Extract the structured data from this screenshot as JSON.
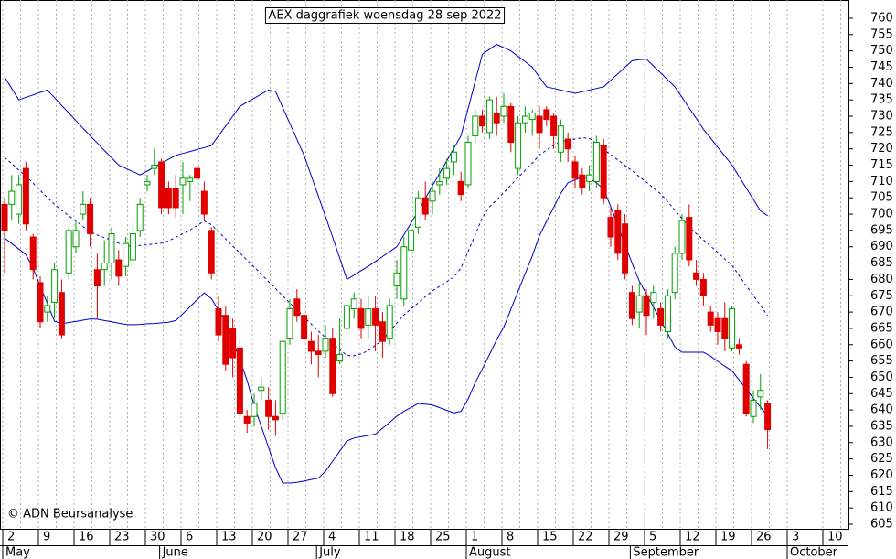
{
  "chart_data": {
    "type": "candlestick",
    "title": "AEX daggrafiek woensdag 28 sep 2022",
    "credit": "© ADN Beursanalyse",
    "up_color": "#00a000",
    "down_color": "#e00000",
    "open": [
      703,
      703,
      700,
      714,
      693,
      679,
      670,
      673,
      676,
      682,
      690,
      700,
      703,
      683,
      683,
      685,
      686,
      684,
      686,
      695,
      709,
      714,
      716,
      708,
      708,
      709,
      710,
      714,
      707,
      695,
      671,
      669,
      665,
      659,
      638,
      638,
      646,
      643,
      638,
      639,
      662,
      674,
      669,
      661,
      658,
      658,
      662,
      655,
      665,
      671,
      671,
      666,
      671,
      667,
      662,
      678,
      674,
      689,
      696,
      705,
      704,
      709,
      711,
      716,
      710,
      709,
      724,
      730,
      725,
      731,
      730,
      733,
      714,
      728,
      729,
      730,
      732,
      730,
      719,
      723,
      716,
      712,
      710,
      710,
      721,
      699,
      701,
      697,
      676,
      670,
      675,
      673,
      671,
      664,
      676,
      688,
      699,
      682,
      680,
      670,
      668,
      668,
      659,
      660,
      654,
      638,
      644,
      642
    ],
    "high": [
      705,
      712,
      712,
      716,
      694,
      681,
      675,
      685,
      680,
      696,
      698,
      707,
      705,
      688,
      692,
      696,
      689,
      693,
      698,
      705,
      712,
      720,
      717,
      710,
      712,
      716,
      712,
      716,
      710,
      696,
      675,
      672,
      668,
      662,
      640,
      645,
      650,
      647,
      643,
      662,
      674,
      677,
      672,
      664,
      663,
      666,
      665,
      668,
      674,
      676,
      674,
      675,
      675,
      670,
      674,
      686,
      693,
      697,
      707,
      710,
      710,
      714,
      717,
      721,
      713,
      724,
      732,
      732,
      736,
      736,
      737,
      734,
      730,
      733,
      732,
      733,
      733,
      731,
      729,
      725,
      718,
      714,
      715,
      724,
      723,
      702,
      703,
      700,
      678,
      679,
      677,
      678,
      673,
      677,
      690,
      700,
      703,
      686,
      682,
      672,
      670,
      673,
      672,
      662,
      655,
      646,
      651,
      643
    ],
    "low": [
      682,
      698,
      697,
      695,
      680,
      665,
      667,
      668,
      662,
      680,
      688,
      698,
      690,
      668,
      678,
      680,
      678,
      681,
      683,
      693,
      707,
      712,
      700,
      700,
      699,
      700,
      704,
      708,
      698,
      680,
      661,
      652,
      650,
      637,
      633,
      635,
      643,
      634,
      632,
      637,
      660,
      667,
      660,
      654,
      650,
      656,
      644,
      654,
      663,
      668,
      662,
      662,
      658,
      656,
      660,
      674,
      672,
      687,
      694,
      698,
      700,
      706,
      709,
      712,
      704,
      708,
      722,
      725,
      723,
      724,
      728,
      719,
      712,
      725,
      724,
      720,
      727,
      720,
      716,
      716,
      708,
      706,
      707,
      708,
      703,
      690,
      686,
      680,
      666,
      665,
      663,
      668,
      664,
      662,
      674,
      686,
      684,
      678,
      672,
      664,
      660,
      658,
      658,
      657,
      638,
      636,
      640,
      628
    ],
    "close": [
      695,
      707,
      709,
      697,
      683,
      667,
      672,
      683,
      663,
      695,
      695,
      703,
      694,
      678,
      685,
      694,
      681,
      691,
      694,
      703,
      710,
      715,
      702,
      702,
      702,
      711,
      711,
      711,
      700,
      682,
      663,
      654,
      656,
      639,
      636,
      642,
      647,
      638,
      637,
      661,
      671,
      669,
      662,
      658,
      657,
      662,
      645,
      657,
      672,
      674,
      665,
      671,
      666,
      661,
      672,
      682,
      690,
      695,
      705,
      700,
      707,
      710,
      714,
      719,
      706,
      722,
      730,
      727,
      735,
      728,
      733,
      722,
      728,
      730,
      731,
      725,
      729,
      724,
      727,
      720,
      711,
      708,
      712,
      722,
      705,
      693,
      688,
      682,
      668,
      675,
      669,
      676,
      666,
      675,
      688,
      698,
      686,
      680,
      675,
      666,
      664,
      662,
      671,
      659,
      639,
      643,
      646,
      634
    ],
    "bands": [
      {
        "color": "#0000c8",
        "dashed": false,
        "values": [
          742,
          738.5,
          735,
          735.8,
          736.5,
          737.3,
          738,
          735.7,
          733.3,
          731,
          728.7,
          726.3,
          724,
          721.8,
          719.5,
          717.3,
          715,
          714,
          713,
          712,
          713.2,
          714.4,
          715.6,
          716.8,
          718,
          718.6,
          719.2,
          719.8,
          720.4,
          721,
          724,
          727,
          730,
          733,
          734.3,
          735.5,
          736.8,
          738,
          737.6,
          732.7,
          727.8,
          722.9,
          718,
          711.8,
          705.5,
          699.3,
          693,
          686.5,
          680,
          681.3,
          682.7,
          684,
          685.5,
          687,
          688.5,
          690,
          693.7,
          697.3,
          701,
          704.8,
          708.7,
          712.5,
          716.3,
          720.2,
          724,
          732.3,
          740.7,
          749,
          750.5,
          752,
          751,
          750,
          748.3,
          746.7,
          745,
          742,
          739,
          738.5,
          738,
          737.5,
          737,
          737.5,
          738,
          738.5,
          739,
          741,
          743,
          745,
          747,
          747.3,
          747.5,
          745.4,
          743.3,
          741.1,
          739,
          735.8,
          732.5,
          729.3,
          726,
          723.3,
          720.5,
          717.8,
          715,
          711.5,
          708,
          704.5,
          701,
          699.5
        ]
      },
      {
        "color": "#0000c8",
        "dashed": true,
        "values": [
          717.4,
          715.5,
          713.5,
          711.6,
          709.5,
          707.3,
          705.1,
          703,
          701.2,
          699.5,
          697.9,
          696.2,
          694.6,
          693.6,
          692.8,
          692,
          691.1,
          690.3,
          690.1,
          690.4,
          690.6,
          690.9,
          691.1,
          691.8,
          692.9,
          694,
          695.1,
          696.5,
          697.9,
          696.8,
          694.6,
          692.4,
          690.2,
          688.1,
          685.9,
          683.8,
          681.6,
          679.4,
          677.2,
          675,
          672.8,
          670.7,
          668.5,
          666.3,
          664.2,
          662.2,
          660.4,
          658.5,
          656.7,
          656.6,
          657.2,
          658.2,
          659.8,
          661.5,
          664,
          666.6,
          669.1,
          671,
          672.8,
          674.7,
          676.5,
          677.9,
          679.3,
          680.7,
          683.5,
          688.6,
          693.7,
          699,
          702.2,
          704.4,
          706.6,
          708.9,
          711.2,
          713.4,
          715.6,
          718.2,
          719.6,
          721.2,
          722.2,
          722.6,
          723,
          723.4,
          723.2,
          721.6,
          719.8,
          718.2,
          716.6,
          714.9,
          713.3,
          711.5,
          709.8,
          708,
          706.2,
          703.8,
          701.2,
          698.6,
          696.2,
          694,
          692.1,
          690.2,
          688.3,
          686.2,
          684.3,
          681.2,
          678.1,
          675.1,
          672,
          668.9
        ]
      },
      {
        "color": "#0000c8",
        "dashed": false,
        "values": [
          692.7,
          691,
          689.3,
          687.6,
          683.3,
          678,
          672.6,
          667.2,
          666.4,
          666.8,
          667.1,
          667.5,
          667.9,
          667.8,
          667.4,
          667,
          666.6,
          666.2,
          666.1,
          666.2,
          666.4,
          666.5,
          666.7,
          666.9,
          667.4,
          669.5,
          671.6,
          673.8,
          675.9,
          674.1,
          670.6,
          667,
          661.3,
          655.4,
          649.1,
          641.3,
          635,
          628.6,
          622.3,
          617.6,
          617.6,
          617.8,
          618.2,
          618.7,
          619.1,
          621.2,
          624.3,
          627.4,
          630.5,
          631.4,
          631.8,
          632.2,
          632.6,
          634.4,
          636.2,
          638.1,
          639.6,
          640.8,
          642,
          641.8,
          641.5,
          640.7,
          639.9,
          639.1,
          639.6,
          643.4,
          648.4,
          652.6,
          657,
          661.5,
          665.4,
          670.9,
          676.3,
          681.8,
          687.2,
          693.4,
          697.8,
          702.1,
          706.4,
          709.6,
          710.5,
          711.4,
          711,
          709.6,
          707.6,
          702.3,
          696.5,
          690.7,
          684.9,
          679.5,
          675.5,
          671.5,
          667.4,
          663.4,
          659.3,
          657.7,
          657.7,
          657.7,
          657.7,
          656.5,
          654.9,
          653.4,
          652,
          649.2,
          646.4,
          643.6,
          640.9,
          638.1
        ]
      }
    ],
    "ylim": [
      603.6,
      765.6
    ],
    "yticks": [
      605,
      610,
      615,
      620,
      625,
      630,
      635,
      640,
      645,
      650,
      655,
      660,
      665,
      670,
      675,
      680,
      685,
      690,
      695,
      700,
      705,
      710,
      715,
      720,
      725,
      730,
      735,
      740,
      745,
      750,
      755,
      760
    ],
    "week_labels": [
      "2",
      "9",
      "16",
      "23",
      "30",
      "6",
      "13",
      "20",
      "27",
      "4",
      "11",
      "18",
      "25",
      "1",
      "8",
      "15",
      "22",
      "29",
      "5",
      "12",
      "19",
      "26",
      "3",
      "10"
    ],
    "months": [
      "May",
      "June",
      "July",
      "August",
      "September",
      "October"
    ]
  }
}
